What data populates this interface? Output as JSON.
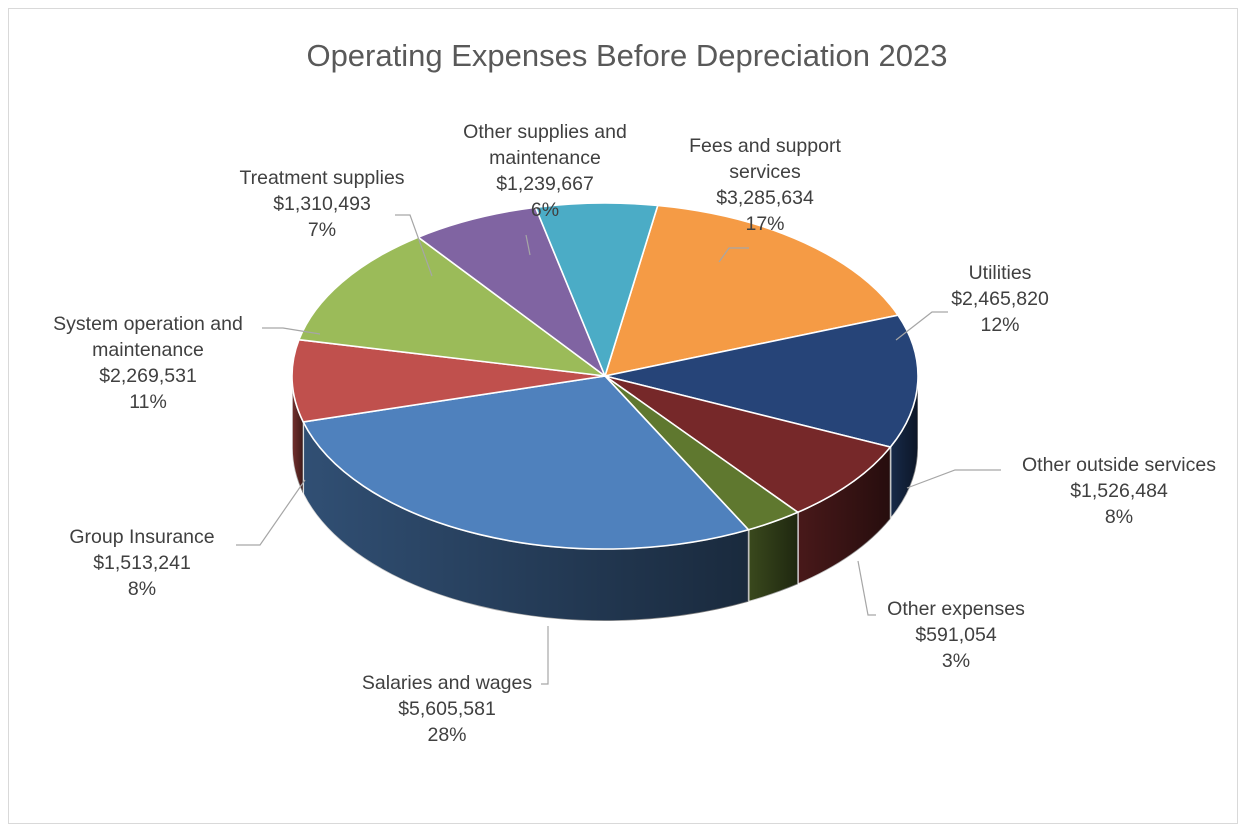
{
  "chart_data": {
    "type": "pie",
    "variant": "3d",
    "title": "Operating Expenses Before Depreciation 2023",
    "slices": [
      {
        "key": "fees",
        "label_lines": [
          "Fees and support",
          "services"
        ],
        "value_text": "$3,285,634",
        "percent_text": "17%",
        "value": 3285634,
        "color": "#F59B45"
      },
      {
        "key": "utilities",
        "label_lines": [
          "Utilities"
        ],
        "value_text": "$2,465,820",
        "percent_text": "12%",
        "value": 2465820,
        "color": "#264478"
      },
      {
        "key": "other-outside",
        "label_lines": [
          "Other outside services"
        ],
        "value_text": "$1,526,484",
        "percent_text": "8%",
        "value": 1526484,
        "color": "#762829"
      },
      {
        "key": "other-expenses",
        "label_lines": [
          "Other expenses"
        ],
        "value_text": "$591,054",
        "percent_text": "3%",
        "value": 591054,
        "color": "#5F782F"
      },
      {
        "key": "salaries",
        "label_lines": [
          "Salaries and wages"
        ],
        "value_text": "$5,605,581",
        "percent_text": "28%",
        "value": 5605581,
        "color": "#4F81BD"
      },
      {
        "key": "group-insurance",
        "label_lines": [
          "Group Insurance"
        ],
        "value_text": "$1,513,241",
        "percent_text": "8%",
        "value": 1513241,
        "color": "#C0504D"
      },
      {
        "key": "system-operation",
        "label_lines": [
          "System operation and",
          "maintenance"
        ],
        "value_text": "$2,269,531",
        "percent_text": "11%",
        "value": 2269531,
        "color": "#9BBB59"
      },
      {
        "key": "treatment-supplies",
        "label_lines": [
          "Treatment supplies"
        ],
        "value_text": "$1,310,493",
        "percent_text": "7%",
        "value": 1310493,
        "color": "#8064A2"
      },
      {
        "key": "other-supplies",
        "label_lines": [
          "Other supplies and",
          "maintenance"
        ],
        "value_text": "$1,239,667",
        "percent_text": "6%",
        "value": 1239667,
        "color": "#4BACC6"
      }
    ]
  }
}
